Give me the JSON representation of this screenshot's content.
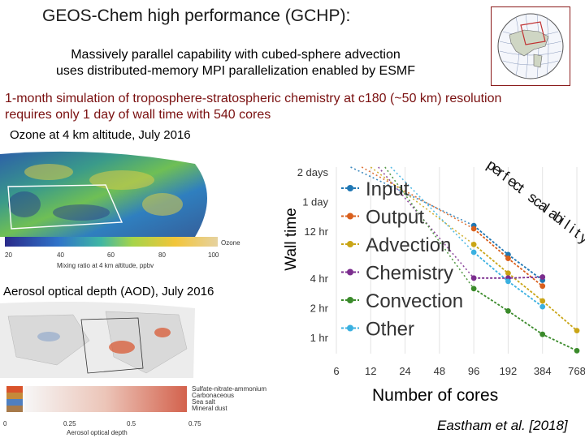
{
  "header": {
    "title": "GEOS-Chem high performance (GCHP):",
    "subtitle_line1": "Massively parallel capability with cubed-sphere advection",
    "subtitle_line2": "uses distributed-memory MPI parallelization enabled by ESMF",
    "highlight_line1": "1-month simulation of troposphere-stratospheric chemistry at c180 (~50 km) resolution",
    "highlight_line2": "requires only 1 day of wall time with 540 cores"
  },
  "ozone_panel": {
    "caption": "Ozone at 4 km altitude, July 2016",
    "colorbar_label": "Ozone",
    "colorbar_ticks": [
      "20",
      "40",
      "60",
      "80",
      "100"
    ],
    "colorbar_title": "Mixing ratio at 4 km altitude, ppbv"
  },
  "aod_panel": {
    "caption": "Aerosol optical depth (AOD), July 2016",
    "legend": [
      {
        "label": "Sulfate-nitrate-ammonium",
        "color": "#d9532b"
      },
      {
        "label": "Carbonaceous",
        "color": "#c58a3a"
      },
      {
        "label": "Sea salt",
        "color": "#4f7fbf"
      },
      {
        "label": "Mineral dust",
        "color": "#a77a4a"
      }
    ],
    "axis_ticks": [
      "0",
      "0.25",
      "0.5",
      "0.75"
    ],
    "axis_title": "Aerosol optical depth"
  },
  "chart_data": {
    "type": "line",
    "title": "",
    "xlabel": "Number of cores",
    "ylabel": "Wall time",
    "x_scale": "log",
    "y_scale": "log",
    "x_ticks": [
      6,
      12,
      24,
      48,
      96,
      192,
      384,
      768
    ],
    "x_tick_labels": [
      "6",
      "12",
      "24",
      "48",
      "96",
      "192",
      "384",
      "768"
    ],
    "y_ticks": [
      1,
      2,
      4,
      12,
      24,
      48
    ],
    "y_tick_labels": [
      "1 hr",
      "2 hr",
      "4 hr",
      "12 hr",
      "1 day",
      "2 days"
    ],
    "y_unit": "hours",
    "ylim": [
      0.7,
      55
    ],
    "grid": "vertical",
    "legend_position": "inside-left",
    "annotation": "perfect scalability",
    "series": [
      {
        "name": "Input",
        "color": "#1f77b4",
        "x": [
          96,
          192,
          384
        ],
        "y": [
          14,
          7.1,
          3.9
        ],
        "marker": "dot",
        "dotted_extension_from": [
          8,
          55
        ]
      },
      {
        "name": "Output",
        "color": "#d95f1c",
        "x": [
          96,
          192,
          384
        ],
        "y": [
          13,
          6.5,
          3.4
        ],
        "marker": "dot",
        "dotted_extension_from": [
          10,
          55
        ]
      },
      {
        "name": "Advection",
        "color": "#c9a516",
        "x": [
          96,
          192,
          384,
          768
        ],
        "y": [
          9,
          4.6,
          2.4,
          1.2
        ],
        "marker": "dot",
        "dotted_extension_from": [
          12,
          55
        ]
      },
      {
        "name": "Chemistry",
        "color": "#7b2d8e",
        "x": [
          96,
          192,
          384
        ],
        "y": [
          4.1,
          4.1,
          4.2
        ],
        "marker": "dot",
        "dotted_extension_from": [
          14,
          55
        ]
      },
      {
        "name": "Convection",
        "color": "#3a8a2a",
        "x": [
          96,
          192,
          384,
          768
        ],
        "y": [
          3.2,
          1.9,
          1.1,
          0.75
        ],
        "marker": "dot",
        "dotted_extension_from": [
          16,
          55
        ]
      },
      {
        "name": "Other",
        "color": "#3ab0e0",
        "x": [
          96,
          192,
          384
        ],
        "y": [
          7.5,
          3.8,
          2.1
        ],
        "marker": "dot",
        "dotted_extension_from": [
          18,
          55
        ]
      }
    ]
  },
  "scalability_text": "perfect scalability",
  "citation": "Eastham et al. [2018]"
}
